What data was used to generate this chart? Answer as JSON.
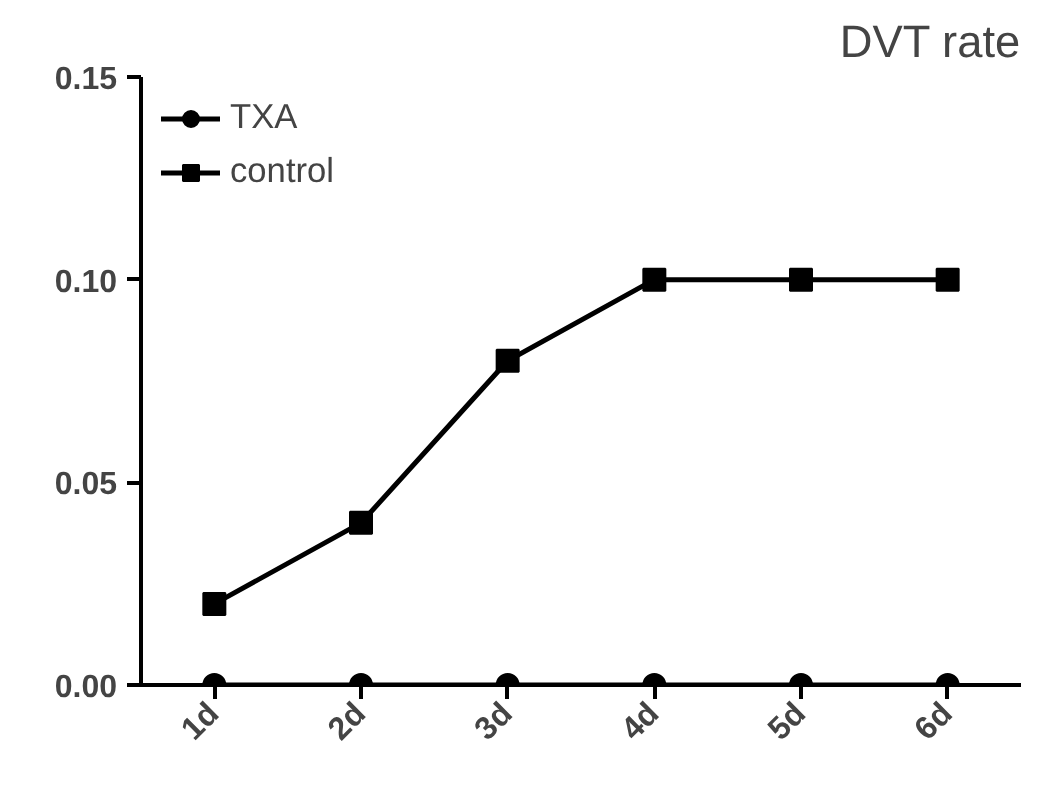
{
  "chart_data": {
    "type": "line",
    "title": "DVT rate",
    "categories": [
      "1d",
      "2d",
      "3d",
      "4d",
      "5d",
      "6d"
    ],
    "series": [
      {
        "name": "TXA",
        "color": "#000000",
        "marker": "circle",
        "values": [
          0,
          0,
          0,
          0,
          0,
          0
        ]
      },
      {
        "name": "control",
        "color": "#000000",
        "marker": "square",
        "values": [
          0.02,
          0.04,
          0.08,
          0.1,
          0.1,
          0.1
        ]
      }
    ],
    "ylim": [
      0,
      0.15
    ],
    "yticks": [
      {
        "value": 0,
        "label": "0.00"
      },
      {
        "value": 0.05,
        "label": "0.05"
      },
      {
        "value": 0.1,
        "label": "0.10"
      },
      {
        "value": 0.15,
        "label": "0.15"
      }
    ],
    "grid": false,
    "legend": "top left",
    "line_style": "solid"
  }
}
